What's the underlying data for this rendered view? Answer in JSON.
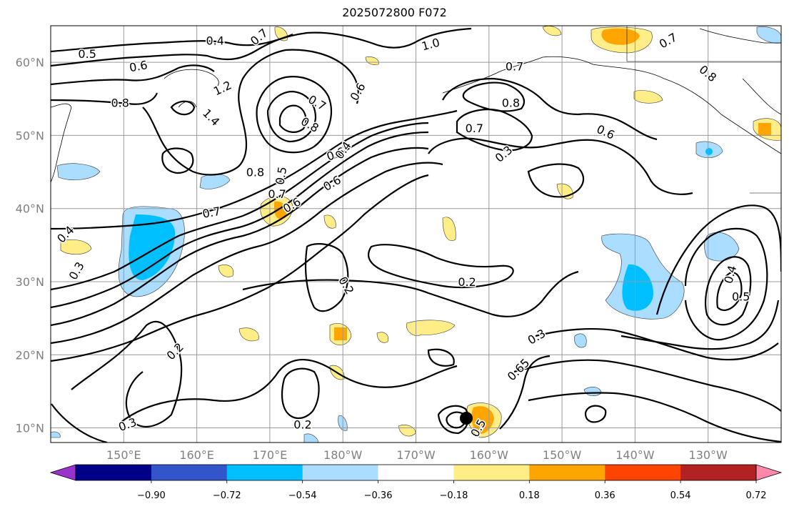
{
  "title": "2025072800 F072",
  "map": {
    "projection": "equirectangular",
    "region": {
      "lon_min": 140,
      "lon_max": 240,
      "lat_min": 8,
      "lat_max": 65
    },
    "lat_labels": [
      "10°N",
      "20°N",
      "30°N",
      "40°N",
      "50°N",
      "60°N"
    ],
    "lon_labels": [
      "150°E",
      "160°E",
      "170°E",
      "180°W",
      "170°W",
      "160°W",
      "150°W",
      "140°W",
      "130°W"
    ],
    "grid": true,
    "contour_line_color": "#000000"
  },
  "contour_labels": [
    "0.4",
    "0.5",
    "0.6",
    "0.7",
    "0.8",
    "1.0",
    "1.2",
    "1.4",
    "0.7",
    "0.6",
    "0.8",
    "0.6",
    "0.8",
    "0.7",
    "0.5",
    "0.4",
    "0.6",
    "0.6",
    "0.7",
    "0.4",
    "0.3",
    "0.2",
    "0.2",
    "0.2",
    "0.3",
    "0.2",
    "0.3",
    "0.65",
    "0.5",
    "0.7",
    "0.8",
    "0.7",
    "0.3",
    "0.6",
    "0.7",
    "0.8",
    "0.4",
    "0.5"
  ],
  "colorbar": {
    "colors": [
      "#9933cc",
      "#000088",
      "#3355cc",
      "#00bfff",
      "#aaddff",
      "#ffffff",
      "#ffee88",
      "#ffa500",
      "#ff4400",
      "#b22222",
      "#ff88aa"
    ],
    "tick_labels": [
      "−0.90",
      "−0.72",
      "−0.54",
      "−0.36",
      "−0.18",
      "0.18",
      "0.36",
      "0.54",
      "0.72",
      "0.90"
    ],
    "extend": "both"
  },
  "colors": {
    "neg_light": "#aaddff",
    "neg_mid": "#00bfff",
    "pos_light": "#ffee88",
    "pos_mid": "#ffa500"
  }
}
